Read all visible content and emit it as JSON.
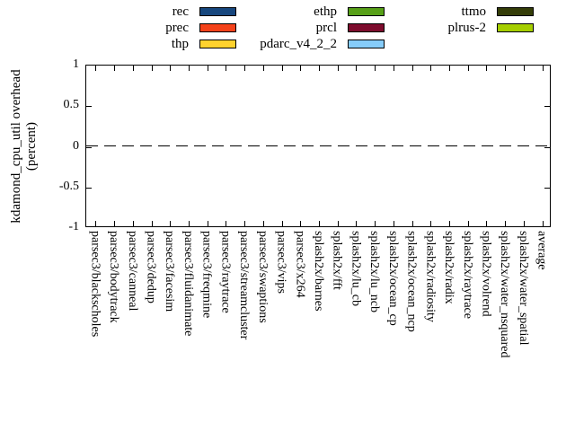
{
  "figure": {
    "ylabel_line1": "kdamond_cpu_util overhead",
    "ylabel_line2": "(percent)"
  },
  "legend": {
    "columns": [
      {
        "items": [
          {
            "label": "rec",
            "color": "#17477E"
          },
          {
            "label": "prec",
            "color": "#F4421A"
          },
          {
            "label": "thp",
            "color": "#FFD22E"
          }
        ]
      },
      {
        "items": [
          {
            "label": "ethp",
            "color": "#57A018"
          },
          {
            "label": "prcl",
            "color": "#7D0C2D"
          },
          {
            "label": "pdarc_v4_2_2",
            "color": "#86CCF9"
          }
        ]
      },
      {
        "items": [
          {
            "label": "ttmo",
            "color": "#343D08"
          },
          {
            "label": "plrus-2",
            "color": "#A5CE00"
          }
        ]
      }
    ]
  },
  "axes": {
    "yticks": [
      "1",
      "0.5",
      "0",
      "-0.5",
      "-1"
    ]
  },
  "chart_data": {
    "type": "bar",
    "title": "",
    "ylabel": "kdamond_cpu_util overhead (percent)",
    "ylim": [
      -1,
      1
    ],
    "yticks": [
      1,
      0.5,
      0,
      -0.5,
      -1
    ],
    "grid": "dashed-zero-line-only",
    "legend_position": "top",
    "categories": [
      "parsec3/blackscholes",
      "parsec3/bodytrack",
      "parsec3/canneal",
      "parsec3/dedup",
      "parsec3/facesim",
      "parsec3/fluidanimate",
      "parsec3/freqmine",
      "parsec3/raytrace",
      "parsec3/streamcluster",
      "parsec3/swaptions",
      "parsec3/vips",
      "parsec3/x264",
      "splash2x/barnes",
      "splash2x/fft",
      "splash2x/lu_cb",
      "splash2x/lu_ncb",
      "splash2x/ocean_cp",
      "splash2x/ocean_ncp",
      "splash2x/radiosity",
      "splash2x/radix",
      "splash2x/raytrace",
      "splash2x/volrend",
      "splash2x/water_nsquared",
      "splash2x/water_spatial",
      "average"
    ],
    "series": [
      {
        "name": "rec",
        "color": "#17477E",
        "values": [
          0,
          0,
          0,
          0,
          0,
          0,
          0,
          0,
          0,
          0,
          0,
          0,
          0,
          0,
          0,
          0,
          0,
          0,
          0,
          0,
          0,
          0,
          0,
          0,
          0
        ]
      },
      {
        "name": "prec",
        "color": "#F4421A",
        "values": [
          0,
          0,
          0,
          0,
          0,
          0,
          0,
          0,
          0,
          0,
          0,
          0,
          0,
          0,
          0,
          0,
          0,
          0,
          0,
          0,
          0,
          0,
          0,
          0,
          0
        ]
      },
      {
        "name": "thp",
        "color": "#FFD22E",
        "values": [
          0,
          0,
          0,
          0,
          0,
          0,
          0,
          0,
          0,
          0,
          0,
          0,
          0,
          0,
          0,
          0,
          0,
          0,
          0,
          0,
          0,
          0,
          0,
          0,
          0
        ]
      },
      {
        "name": "ethp",
        "color": "#57A018",
        "values": [
          0,
          0,
          0,
          0,
          0,
          0,
          0,
          0,
          0,
          0,
          0,
          0,
          0,
          0,
          0,
          0,
          0,
          0,
          0,
          0,
          0,
          0,
          0,
          0,
          0
        ]
      },
      {
        "name": "prcl",
        "color": "#7D0C2D",
        "values": [
          0,
          0,
          0,
          0,
          0,
          0,
          0,
          0,
          0,
          0,
          0,
          0,
          0,
          0,
          0,
          0,
          0,
          0,
          0,
          0,
          0,
          0,
          0,
          0,
          0
        ]
      },
      {
        "name": "pdarc_v4_2_2",
        "color": "#86CCF9",
        "values": [
          0,
          0,
          0,
          0,
          0,
          0,
          0,
          0,
          0,
          0,
          0,
          0,
          0,
          0,
          0,
          0,
          0,
          0,
          0,
          0,
          0,
          0,
          0,
          0,
          0
        ]
      },
      {
        "name": "ttmo",
        "color": "#343D08",
        "values": [
          0,
          0,
          0,
          0,
          0,
          0,
          0,
          0,
          0,
          0,
          0,
          0,
          0,
          0,
          0,
          0,
          0,
          0,
          0,
          0,
          0,
          0,
          0,
          0,
          0
        ]
      },
      {
        "name": "plrus-2",
        "color": "#A5CE00",
        "values": [
          0,
          0,
          0,
          0,
          0,
          0,
          0,
          0,
          0,
          0,
          0,
          0,
          0,
          0,
          0,
          0,
          0,
          0,
          0,
          0,
          0,
          0,
          0,
          0,
          0
        ]
      }
    ]
  }
}
